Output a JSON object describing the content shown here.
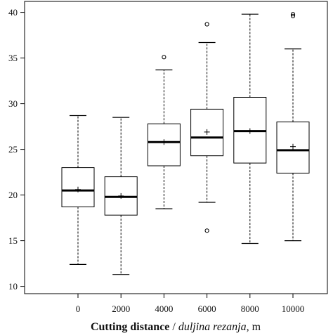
{
  "chart_data": {
    "type": "boxplot",
    "categories": [
      "0",
      "2000",
      "4000",
      "6000",
      "8000",
      "10000"
    ],
    "boxes": [
      {
        "min": 12.4,
        "q1": 18.7,
        "median": 20.5,
        "mean": 20.6,
        "q3": 23.0,
        "max": 28.7,
        "outliers": []
      },
      {
        "min": 11.3,
        "q1": 17.8,
        "median": 19.8,
        "mean": 19.9,
        "q3": 22.0,
        "max": 28.5,
        "outliers": []
      },
      {
        "min": 18.5,
        "q1": 23.2,
        "median": 25.8,
        "mean": 25.8,
        "q3": 27.8,
        "max": 33.7,
        "outliers": [
          35.1
        ]
      },
      {
        "min": 19.2,
        "q1": 24.3,
        "median": 26.3,
        "mean": 26.9,
        "q3": 29.4,
        "max": 36.7,
        "outliers": [
          38.7,
          16.1
        ]
      },
      {
        "min": 14.7,
        "q1": 23.5,
        "median": 27.0,
        "mean": 27.0,
        "q3": 30.7,
        "max": 39.8,
        "outliers": []
      },
      {
        "min": 15.0,
        "q1": 22.4,
        "median": 24.9,
        "mean": 25.3,
        "q3": 28.0,
        "max": 36.0,
        "outliers": [
          39.6,
          39.8
        ]
      }
    ],
    "y_ticks": [
      10,
      15,
      20,
      25,
      30,
      35,
      40
    ],
    "ylim": [
      9.2,
      41.2
    ],
    "xlabel": {
      "bold": "Cutting distance",
      "sep": " / ",
      "italic": "duljina rezanja",
      "unit": ", m"
    },
    "ylabel": "",
    "grid": false
  }
}
